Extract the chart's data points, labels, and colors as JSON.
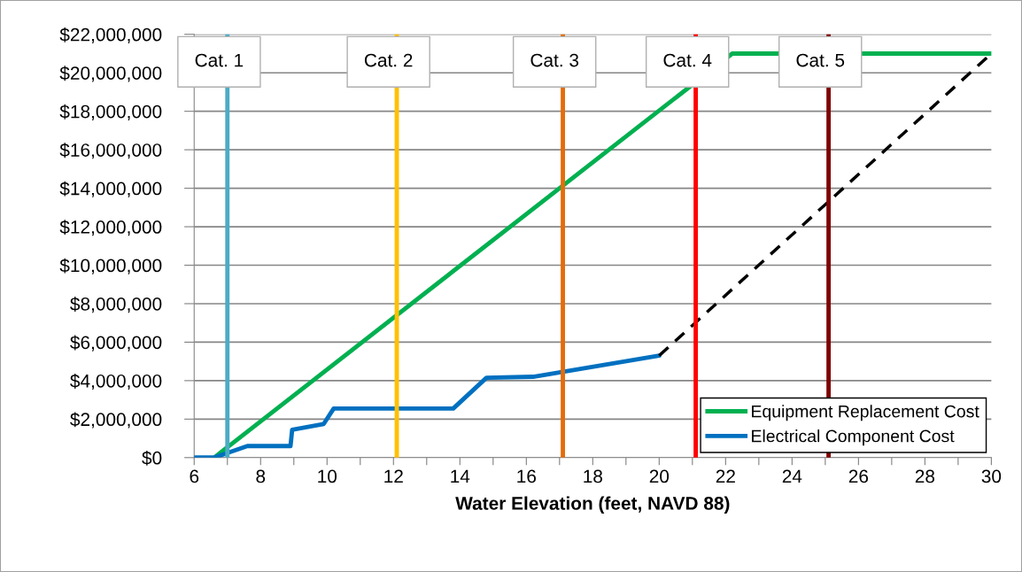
{
  "chart_data": {
    "type": "line",
    "xlabel": "Water Elevation (feet, NAVD 88)",
    "xlim": [
      6,
      30
    ],
    "xticks": [
      6,
      {
        "value": 7,
        "label": null
      },
      8,
      {
        "value": 9,
        "label": null
      },
      10,
      {
        "value": 11,
        "label": null
      },
      12,
      {
        "value": 13,
        "label": null
      },
      14,
      {
        "value": 15,
        "label": null
      },
      16,
      {
        "value": 17,
        "label": null
      },
      18,
      {
        "value": 19,
        "label": null
      },
      20,
      {
        "value": 21,
        "label": null
      },
      22,
      {
        "value": 23,
        "label": null
      },
      24,
      {
        "value": 25,
        "label": null
      },
      26,
      {
        "value": 27,
        "label": null
      },
      28,
      {
        "value": 29,
        "label": null
      },
      30
    ],
    "ylim": [
      0,
      22000000
    ],
    "yticks": [
      {
        "value": 0,
        "label": "$0"
      },
      {
        "value": 2000000,
        "label": "$2,000,000"
      },
      {
        "value": 4000000,
        "label": "$4,000,000"
      },
      {
        "value": 6000000,
        "label": "$6,000,000"
      },
      {
        "value": 8000000,
        "label": "$8,000,000"
      },
      {
        "value": 10000000,
        "label": "$10,000,000"
      },
      {
        "value": 12000000,
        "label": "$12,000,000"
      },
      {
        "value": 14000000,
        "label": "$14,000,000"
      },
      {
        "value": 16000000,
        "label": "$16,000,000"
      },
      {
        "value": 18000000,
        "label": "$18,000,000"
      },
      {
        "value": 20000000,
        "label": "$20,000,000"
      },
      {
        "value": 22000000,
        "label": "$22,000,000"
      }
    ],
    "grid": "y",
    "legend": "bottom right",
    "marker": "none",
    "series": [
      {
        "name": "Equipment Replacement Cost",
        "color": "#00b050",
        "line_style": "solid",
        "x": [
          6.6,
          22.2,
          30
        ],
        "values": [
          0,
          21000000,
          21000000
        ]
      },
      {
        "name": "Electrical Component Cost",
        "color": "#0070c0",
        "line_style": "solid",
        "x": [
          6,
          6.6,
          7.6,
          8.9,
          8.95,
          9.9,
          10.2,
          13.8,
          14.8,
          16.2,
          20
        ],
        "values": [
          0,
          0,
          600000,
          600000,
          1450000,
          1750000,
          2550000,
          2550000,
          4150000,
          4200000,
          5300000
        ]
      },
      {
        "color": "#000000",
        "line_style": "dashed",
        "x": [
          20,
          30
        ],
        "values": [
          5300000,
          21000000
        ]
      }
    ],
    "ref_lines": [
      {
        "axis": "x",
        "value": 7,
        "label": "Cat. 1",
        "color": "#4bacc6"
      },
      {
        "axis": "x",
        "value": 12.1,
        "label": "Cat. 2",
        "color": "#ffc000"
      },
      {
        "axis": "x",
        "value": 17.1,
        "label": "Cat. 3",
        "color": "#e46c0a"
      },
      {
        "axis": "x",
        "value": 21.1,
        "label": "Cat. 4",
        "color": "#ff0000"
      },
      {
        "axis": "x",
        "value": 25.1,
        "label": "Cat. 5",
        "color": "#7f0000"
      }
    ]
  }
}
